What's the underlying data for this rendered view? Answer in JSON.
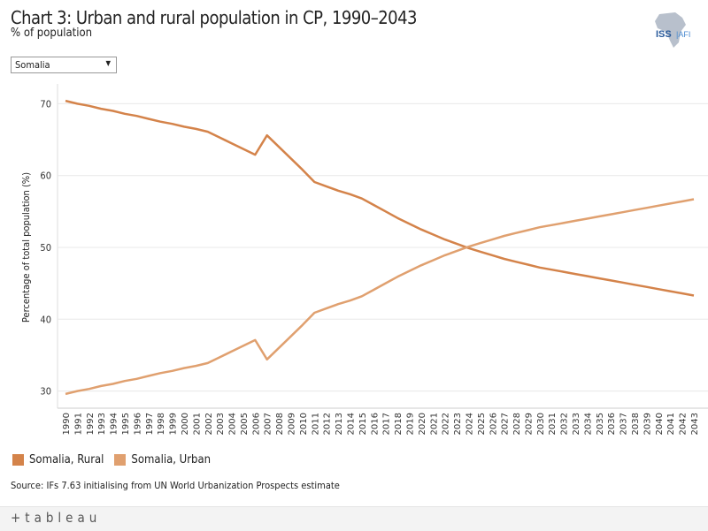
{
  "header": {
    "title": "Chart 3: Urban and rural population in CP, 1990–2043",
    "subtitle": "% of population"
  },
  "logo": {
    "text": "ISS",
    "text2": "AFI"
  },
  "filter": {
    "selected": "Somalia"
  },
  "source": "Source: IFs 7.63 initialising from UN World Urbanization Prospects estimate",
  "footer": {
    "brand": "+tableau"
  },
  "chart_data": {
    "type": "line",
    "ylabel": "Percentage of total population (%)",
    "ylim": [
      28,
      72
    ],
    "yticks": [
      30,
      40,
      50,
      60,
      70
    ],
    "grid": true,
    "legend_placement": "bottom-left",
    "x": [
      1990,
      1991,
      1992,
      1993,
      1994,
      1995,
      1996,
      1997,
      1998,
      1999,
      2000,
      2001,
      2002,
      2003,
      2004,
      2005,
      2006,
      2007,
      2008,
      2009,
      2010,
      2011,
      2012,
      2013,
      2014,
      2015,
      2016,
      2017,
      2018,
      2019,
      2020,
      2021,
      2022,
      2023,
      2024,
      2025,
      2026,
      2027,
      2028,
      2029,
      2030,
      2031,
      2032,
      2033,
      2034,
      2035,
      2036,
      2037,
      2038,
      2039,
      2040,
      2041,
      2042,
      2043
    ],
    "series": [
      {
        "name": "Somalia, Rural",
        "color": "#d4834a",
        "values": [
          70.4,
          70.0,
          69.7,
          69.3,
          69.0,
          68.6,
          68.3,
          67.9,
          67.5,
          67.2,
          66.8,
          66.5,
          66.1,
          65.3,
          64.5,
          63.7,
          62.9,
          65.6,
          64.0,
          62.4,
          60.8,
          59.1,
          58.5,
          57.9,
          57.4,
          56.8,
          55.9,
          55.0,
          54.1,
          53.3,
          52.5,
          51.8,
          51.1,
          50.5,
          49.9,
          49.4,
          48.9,
          48.4,
          48.0,
          47.6,
          47.2,
          46.9,
          46.6,
          46.3,
          46.0,
          45.7,
          45.4,
          45.1,
          44.8,
          44.5,
          44.2,
          43.9,
          43.6,
          43.3
        ]
      },
      {
        "name": "Somalia, Urban",
        "color": "#e0a06f",
        "values": [
          29.6,
          30.0,
          30.3,
          30.7,
          31.0,
          31.4,
          31.7,
          32.1,
          32.5,
          32.8,
          33.2,
          33.5,
          33.9,
          34.7,
          35.5,
          36.3,
          37.1,
          34.4,
          36.0,
          37.6,
          39.2,
          40.9,
          41.5,
          42.1,
          42.6,
          43.2,
          44.1,
          45.0,
          45.9,
          46.7,
          47.5,
          48.2,
          48.9,
          49.5,
          50.1,
          50.6,
          51.1,
          51.6,
          52.0,
          52.4,
          52.8,
          53.1,
          53.4,
          53.7,
          54.0,
          54.3,
          54.6,
          54.9,
          55.2,
          55.5,
          55.8,
          56.1,
          56.4,
          56.7
        ]
      }
    ]
  }
}
